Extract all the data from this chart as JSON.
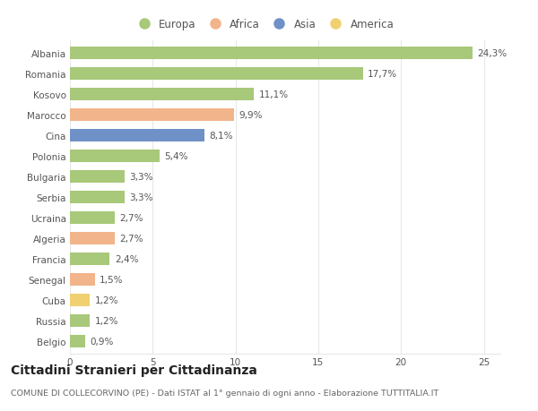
{
  "countries": [
    "Albania",
    "Romania",
    "Kosovo",
    "Marocco",
    "Cina",
    "Polonia",
    "Bulgaria",
    "Serbia",
    "Ucraina",
    "Algeria",
    "Francia",
    "Senegal",
    "Cuba",
    "Russia",
    "Belgio"
  ],
  "values": [
    24.3,
    17.7,
    11.1,
    9.9,
    8.1,
    5.4,
    3.3,
    3.3,
    2.7,
    2.7,
    2.4,
    1.5,
    1.2,
    1.2,
    0.9
  ],
  "continents": [
    "Europa",
    "Europa",
    "Europa",
    "Africa",
    "Asia",
    "Europa",
    "Europa",
    "Europa",
    "Europa",
    "Africa",
    "Europa",
    "Africa",
    "America",
    "Europa",
    "Europa"
  ],
  "continent_colors": {
    "Europa": "#a8c87a",
    "Africa": "#f2b48a",
    "Asia": "#7090c8",
    "America": "#f0d070"
  },
  "legend_order": [
    "Europa",
    "Africa",
    "Asia",
    "America"
  ],
  "title": "Cittadini Stranieri per Cittadinanza",
  "subtitle": "COMUNE DI COLLECORVINO (PE) - Dati ISTAT al 1° gennaio di ogni anno - Elaborazione TUTTITALIA.IT",
  "xlim": [
    0,
    26
  ],
  "xticks": [
    0,
    5,
    10,
    15,
    20,
    25
  ],
  "background_color": "#ffffff",
  "grid_color": "#e8e8e8",
  "bar_height": 0.6,
  "label_fontsize": 7.5,
  "title_fontsize": 10,
  "subtitle_fontsize": 6.8,
  "tick_fontsize": 7.5,
  "legend_fontsize": 8.5
}
